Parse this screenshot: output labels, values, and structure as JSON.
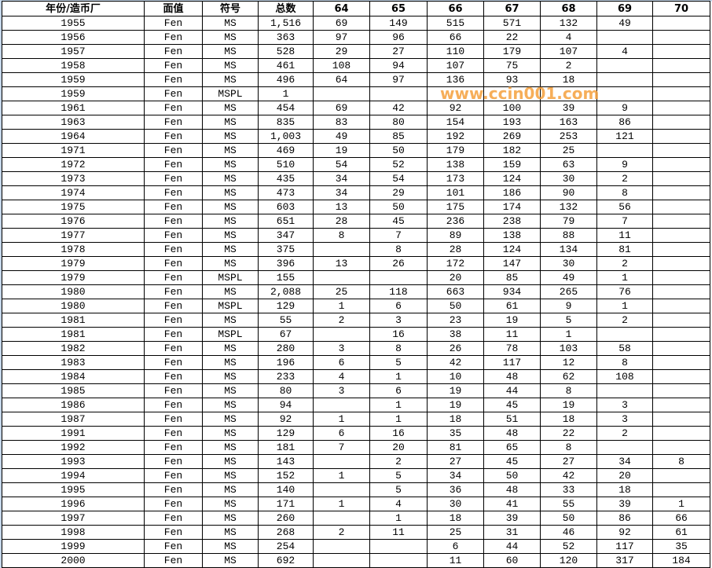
{
  "headers": [
    "年份/造币厂",
    "面值",
    "符号",
    "总数",
    "64",
    "65",
    "66",
    "67",
    "68",
    "69",
    "70"
  ],
  "rows": [
    [
      "1955",
      "Fen",
      "MS",
      "1,516",
      "69",
      "149",
      "515",
      "571",
      "132",
      "49",
      ""
    ],
    [
      "1956",
      "Fen",
      "MS",
      "363",
      "97",
      "96",
      "66",
      "22",
      "4",
      "",
      ""
    ],
    [
      "1957",
      "Fen",
      "MS",
      "528",
      "29",
      "27",
      "110",
      "179",
      "107",
      "4",
      ""
    ],
    [
      "1958",
      "Fen",
      "MS",
      "461",
      "108",
      "94",
      "107",
      "75",
      "2",
      "",
      ""
    ],
    [
      "1959",
      "Fen",
      "MS",
      "496",
      "64",
      "97",
      "136",
      "93",
      "18",
      "",
      ""
    ],
    [
      "1959",
      "Fen",
      "MSPL",
      "1",
      "",
      "",
      "",
      "",
      "",
      "",
      ""
    ],
    [
      "1961",
      "Fen",
      "MS",
      "454",
      "69",
      "42",
      "92",
      "100",
      "39",
      "9",
      ""
    ],
    [
      "1963",
      "Fen",
      "MS",
      "835",
      "83",
      "80",
      "154",
      "193",
      "163",
      "86",
      ""
    ],
    [
      "1964",
      "Fen",
      "MS",
      "1,003",
      "49",
      "85",
      "192",
      "269",
      "253",
      "121",
      ""
    ],
    [
      "1971",
      "Fen",
      "MS",
      "469",
      "19",
      "50",
      "179",
      "182",
      "25",
      "",
      ""
    ],
    [
      "1972",
      "Fen",
      "MS",
      "510",
      "54",
      "52",
      "138",
      "159",
      "63",
      "9",
      ""
    ],
    [
      "1973",
      "Fen",
      "MS",
      "435",
      "34",
      "54",
      "173",
      "124",
      "30",
      "2",
      ""
    ],
    [
      "1974",
      "Fen",
      "MS",
      "473",
      "34",
      "29",
      "101",
      "186",
      "90",
      "8",
      ""
    ],
    [
      "1975",
      "Fen",
      "MS",
      "603",
      "13",
      "50",
      "175",
      "174",
      "132",
      "56",
      ""
    ],
    [
      "1976",
      "Fen",
      "MS",
      "651",
      "28",
      "45",
      "236",
      "238",
      "79",
      "7",
      ""
    ],
    [
      "1977",
      "Fen",
      "MS",
      "347",
      "8",
      "7",
      "89",
      "138",
      "88",
      "11",
      ""
    ],
    [
      "1978",
      "Fen",
      "MS",
      "375",
      "",
      "8",
      "28",
      "124",
      "134",
      "81",
      ""
    ],
    [
      "1979",
      "Fen",
      "MS",
      "396",
      "13",
      "26",
      "172",
      "147",
      "30",
      "2",
      ""
    ],
    [
      "1979",
      "Fen",
      "MSPL",
      "155",
      "",
      "",
      "20",
      "85",
      "49",
      "1",
      ""
    ],
    [
      "1980",
      "Fen",
      "MS",
      "2,088",
      "25",
      "118",
      "663",
      "934",
      "265",
      "76",
      ""
    ],
    [
      "1980",
      "Fen",
      "MSPL",
      "129",
      "1",
      "6",
      "50",
      "61",
      "9",
      "1",
      ""
    ],
    [
      "1981",
      "Fen",
      "MS",
      "55",
      "2",
      "3",
      "23",
      "19",
      "5",
      "2",
      ""
    ],
    [
      "1981",
      "Fen",
      "MSPL",
      "67",
      "",
      "16",
      "38",
      "11",
      "1",
      "",
      ""
    ],
    [
      "1982",
      "Fen",
      "MS",
      "280",
      "3",
      "8",
      "26",
      "78",
      "103",
      "58",
      ""
    ],
    [
      "1983",
      "Fen",
      "MS",
      "196",
      "6",
      "5",
      "42",
      "117",
      "12",
      "8",
      ""
    ],
    [
      "1984",
      "Fen",
      "MS",
      "233",
      "4",
      "1",
      "10",
      "48",
      "62",
      "108",
      ""
    ],
    [
      "1985",
      "Fen",
      "MS",
      "80",
      "3",
      "6",
      "19",
      "44",
      "8",
      "",
      ""
    ],
    [
      "1986",
      "Fen",
      "MS",
      "94",
      "",
      "1",
      "19",
      "45",
      "19",
      "3",
      ""
    ],
    [
      "1987",
      "Fen",
      "MS",
      "92",
      "1",
      "1",
      "18",
      "51",
      "18",
      "3",
      ""
    ],
    [
      "1991",
      "Fen",
      "MS",
      "129",
      "6",
      "16",
      "35",
      "48",
      "22",
      "2",
      ""
    ],
    [
      "1992",
      "Fen",
      "MS",
      "181",
      "7",
      "20",
      "81",
      "65",
      "8",
      "",
      ""
    ],
    [
      "1993",
      "Fen",
      "MS",
      "143",
      "",
      "2",
      "27",
      "45",
      "27",
      "34",
      "8"
    ],
    [
      "1994",
      "Fen",
      "MS",
      "152",
      "1",
      "5",
      "34",
      "50",
      "42",
      "20",
      ""
    ],
    [
      "1995",
      "Fen",
      "MS",
      "140",
      "",
      "5",
      "36",
      "48",
      "33",
      "18",
      ""
    ],
    [
      "1996",
      "Fen",
      "MS",
      "171",
      "1",
      "4",
      "30",
      "41",
      "55",
      "39",
      "1"
    ],
    [
      "1997",
      "Fen",
      "MS",
      "260",
      "",
      "1",
      "18",
      "39",
      "50",
      "86",
      "66"
    ],
    [
      "1998",
      "Fen",
      "MS",
      "268",
      "2",
      "11",
      "25",
      "31",
      "46",
      "92",
      "61"
    ],
    [
      "1999",
      "Fen",
      "MS",
      "254",
      "",
      "",
      "6",
      "44",
      "52",
      "117",
      "35"
    ],
    [
      "2000",
      "Fen",
      "MS",
      "692",
      "",
      "",
      "11",
      "60",
      "120",
      "317",
      "184"
    ]
  ],
  "watermark": "www.ccin001.com"
}
